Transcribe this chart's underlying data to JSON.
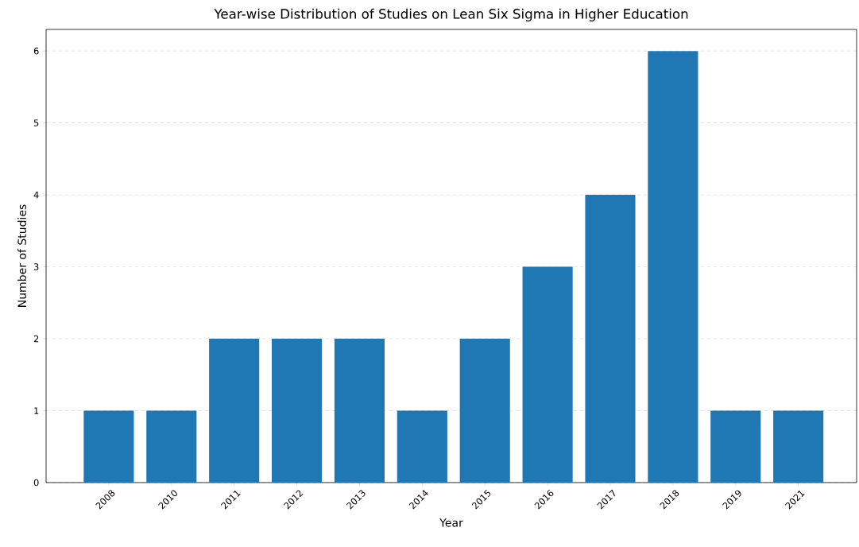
{
  "chart_data": {
    "type": "bar",
    "title": "Year-wise Distribution of Studies on Lean Six Sigma in Higher Education",
    "xlabel": "Year",
    "ylabel": "Number of Studies",
    "categories": [
      "2008",
      "2010",
      "2011",
      "2012",
      "2013",
      "2014",
      "2015",
      "2016",
      "2017",
      "2018",
      "2019",
      "2021"
    ],
    "values": [
      1,
      1,
      2,
      2,
      2,
      1,
      2,
      3,
      4,
      6,
      1,
      1
    ],
    "color": "#1f77b4",
    "ylim": [
      0,
      6.3
    ],
    "yticks": [
      0,
      1,
      2,
      3,
      4,
      5,
      6
    ],
    "grid": "y"
  }
}
